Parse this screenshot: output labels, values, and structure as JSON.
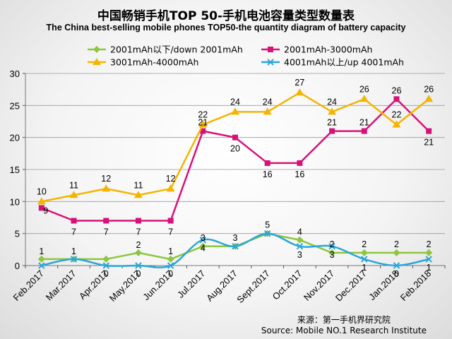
{
  "title_cn": "中国畅销手机TOP 50-手机电池容量类型数量表",
  "title_en": "The China best-selling mobile phones TOP50-the quantity diagram of battery capacity",
  "source_cn": "来源：第一手机界研究院",
  "source_en": "Source: Mobile NO.1 Research Institute",
  "chart_data": {
    "type": "line",
    "categories": [
      "Feb.2017",
      "Mar.2017",
      "Apr.2017",
      "May.2017",
      "Jun.2017",
      "Jul.2017",
      "Aug.2017",
      "Sept.2017",
      "Oct.2017",
      "Nov.2017",
      "Dec.2017",
      "Jan.2018",
      "Feb.2018"
    ],
    "ylim": [
      0,
      30
    ],
    "yticks": [
      0,
      5,
      10,
      15,
      20,
      25,
      30
    ],
    "grid": true,
    "legend_position": "top",
    "series": [
      {
        "name": "2001mAh以下/down 2001mAh",
        "color": "#8dc63f",
        "marker": "diamond",
        "smooth": false,
        "values": [
          1,
          1,
          1,
          2,
          1,
          3,
          3,
          5,
          4,
          2,
          2,
          2,
          2
        ],
        "labels": [
          "1",
          "1",
          "",
          "2",
          "1",
          "3",
          "3",
          "5",
          "4",
          "2",
          "2",
          "2",
          "2"
        ]
      },
      {
        "name": "2001mAh-3000mAh",
        "color": "#d6127a",
        "marker": "square",
        "smooth": false,
        "values": [
          9,
          7,
          7,
          7,
          7,
          21,
          20,
          16,
          16,
          21,
          21,
          26,
          21
        ],
        "labels": [
          "9",
          "7",
          "7",
          "7",
          "7",
          "21",
          "20",
          "16",
          "16",
          "21",
          "21",
          "26",
          "21"
        ]
      },
      {
        "name": "3001mAh-4000mAh",
        "color": "#f5b400",
        "marker": "triangle",
        "smooth": false,
        "values": [
          10,
          11,
          12,
          11,
          12,
          22,
          24,
          24,
          27,
          24,
          26,
          22,
          26
        ],
        "labels": [
          "10",
          "11",
          "12",
          "11",
          "12",
          "22",
          "24",
          "24",
          "27",
          "24",
          "26",
          "22",
          "26"
        ]
      },
      {
        "name": "4001mAh以上/up 4001mAh",
        "color": "#2aa6d8",
        "marker": "x",
        "smooth": true,
        "values": [
          0,
          1,
          0,
          0,
          0,
          4,
          3,
          5,
          3,
          3,
          1,
          0,
          1
        ],
        "labels": [
          "",
          "",
          "0",
          "0",
          "0",
          "4",
          "",
          "",
          "3",
          "3",
          "1",
          "0",
          "1"
        ]
      }
    ]
  }
}
